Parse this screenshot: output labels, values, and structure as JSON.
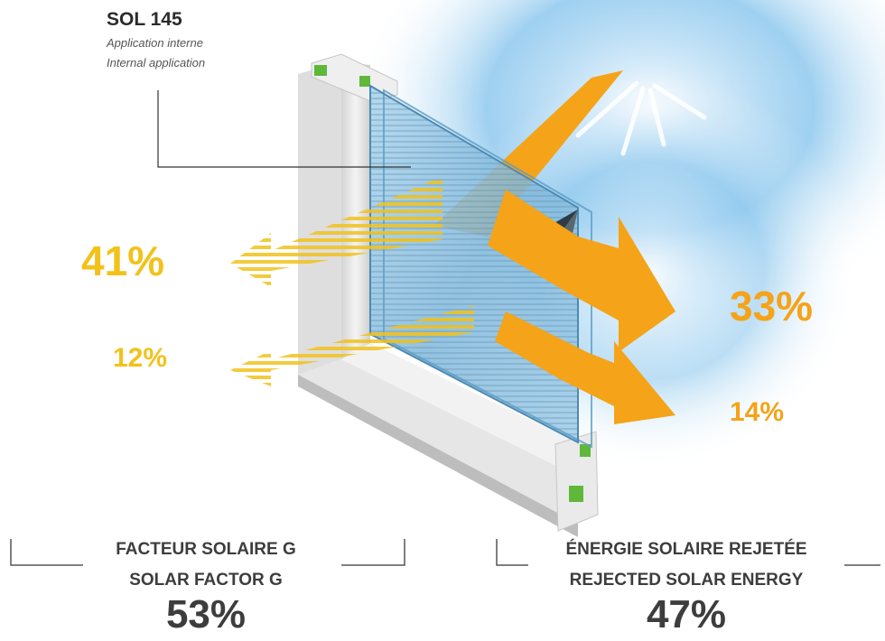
{
  "product": {
    "name": "SOL 145",
    "application_fr": "Application interne",
    "application_en": "Internal application"
  },
  "flows": {
    "inward_main": "41%",
    "inward_secondary": "12%",
    "rejected_main": "33%",
    "rejected_secondary": "14%"
  },
  "solar_factor": {
    "label_fr": "FACTEUR SOLAIRE G",
    "label_en": "SOLAR FACTOR G",
    "value": "53%"
  },
  "rejected_energy": {
    "label_fr": "ÉNERGIE SOLAIRE REJETÉE",
    "label_en": "REJECTED SOLAR ENERGY",
    "value": "47%"
  },
  "colors": {
    "sun_arrow": "#f5a318",
    "transmitted": "#f2c21b",
    "sky": "#8ec8ee",
    "frame": "#e8e8e8",
    "gasket": "#5fb83a"
  }
}
